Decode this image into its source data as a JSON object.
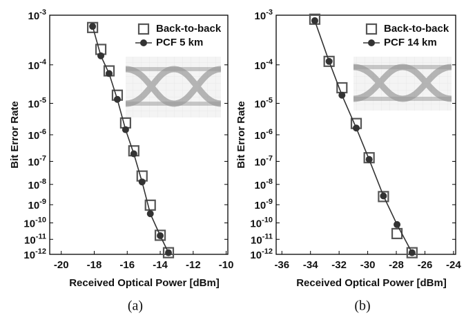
{
  "chart_data": [
    {
      "type": "line",
      "yscale": "ber",
      "legend": "upper right",
      "caption": "(a)",
      "xlabel": "Received Optical Power [dBm]",
      "ylabel": "Bit Error Rate",
      "x": [
        -18.1,
        -17.6,
        -17.1,
        -16.6,
        -16.1,
        -15.6,
        -15.1,
        -14.6,
        -14.0,
        -13.5
      ],
      "series": [
        {
          "name": "Back-to-back",
          "marker": "square",
          "line": false,
          "color": "#555555",
          "values": [
            0.0006,
            0.00022,
            7.2e-05,
            1.7e-05,
            2.5e-06,
            2.6e-07,
            2.4e-08,
            9.5e-10,
            1.8e-11,
            1.3e-12
          ]
        },
        {
          "name": "PCF 5 km",
          "marker": "circle",
          "line": true,
          "color": "#333333",
          "values": [
            0.00063,
            0.00016,
            6.2e-05,
            1.3e-05,
            1.5e-06,
            2e-07,
            1.3e-08,
            3.3e-10,
            1.7e-11,
            1.3e-12
          ]
        }
      ],
      "xlim": [
        -20.7,
        -9.9
      ],
      "xticks": [
        -20,
        -18,
        -16,
        -14,
        -12,
        -10
      ],
      "ylim": [
        1e-12,
        0.001
      ],
      "yticks": [
        {
          "value": 1e-12,
          "label": "10-12"
        },
        {
          "value": 1e-11,
          "label": "10-11"
        },
        {
          "value": 1e-10,
          "label": "10-10"
        },
        {
          "value": 1e-09,
          "label": "10-9"
        },
        {
          "value": 1e-08,
          "label": "10-8"
        },
        {
          "value": 1e-07,
          "label": "10-7"
        },
        {
          "value": 1e-06,
          "label": "10-6"
        },
        {
          "value": 1e-05,
          "label": "10-5"
        },
        {
          "value": 0.0001,
          "label": "10-4"
        },
        {
          "value": 0.001,
          "label": "10-3"
        }
      ]
    },
    {
      "type": "line",
      "yscale": "ber",
      "legend": "upper right",
      "caption": "(b)",
      "xlabel": "Received Optical Power [dBm]",
      "ylabel": "Bit Error Rate",
      "x": [
        -33.7,
        -32.7,
        -31.8,
        -30.8,
        -29.9,
        -28.9,
        -27.95,
        -26.9
      ],
      "series": [
        {
          "name": "Back-to-back",
          "marker": "square",
          "line": false,
          "color": "#555555",
          "values": [
            0.00085,
            0.00012,
            2.7e-05,
            2.4e-06,
            1.4e-07,
            2.6e-09,
            2.3e-11,
            1.3e-12
          ]
        },
        {
          "name": "PCF 14 km",
          "marker": "circle",
          "line": true,
          "color": "#333333",
          "values": [
            0.0008,
            0.00012,
            1.7e-05,
            1.7e-06,
            1.2e-07,
            2.8e-09,
            8e-11,
            1.3e-12
          ]
        }
      ],
      "xlim": [
        -36.4,
        -23.85
      ],
      "xticks": [
        -36,
        -34,
        -32,
        -30,
        -28,
        -26,
        -24
      ],
      "ylim": [
        1e-12,
        0.001
      ],
      "yticks": [
        {
          "value": 1e-12,
          "label": "10-12"
        },
        {
          "value": 1e-11,
          "label": "10-11"
        },
        {
          "value": 1e-10,
          "label": "10-10"
        },
        {
          "value": 1e-09,
          "label": "10-9"
        },
        {
          "value": 1e-08,
          "label": "10-8"
        },
        {
          "value": 1e-07,
          "label": "10-7"
        },
        {
          "value": 1e-06,
          "label": "10-6"
        },
        {
          "value": 1e-05,
          "label": "10-5"
        },
        {
          "value": 0.0001,
          "label": "10-4"
        },
        {
          "value": 0.001,
          "label": "10-3"
        }
      ]
    }
  ]
}
